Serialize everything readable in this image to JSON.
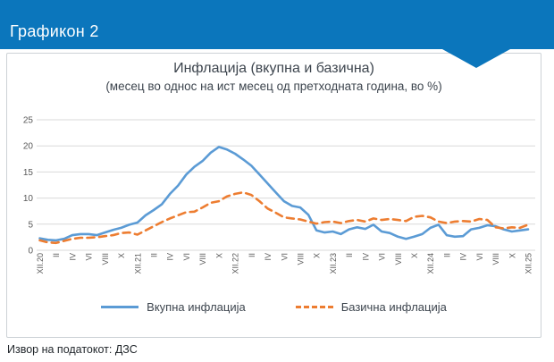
{
  "header": {
    "title": "Графикон 2"
  },
  "footer": {
    "source": "Извор на податокот: ДЗС"
  },
  "colors": {
    "header_blue": "#0b76bc",
    "total_line": "#5b9bd5",
    "core_line": "#ed7d31",
    "grid": "#d9d9d9",
    "axis_text": "#595959",
    "title_text": "#3d454e"
  },
  "chart_data": {
    "type": "line",
    "title": "Инфлација (вкупна и базична)",
    "subtitle": "(месец во однос на ист месец од претходната година, во %)",
    "xlabel": "",
    "ylabel": "",
    "ylim": [
      0,
      25
    ],
    "yticks": [
      0,
      5,
      10,
      15,
      20,
      25
    ],
    "grid": true,
    "legend_position": "bottom",
    "x_frequency": "monthly, every second month labeled, XII.2020 - XII.2025",
    "x_tick_labels": [
      "XII.20",
      "II",
      "IV",
      "VI",
      "VIII",
      "X",
      "XII.21",
      "II",
      "IV",
      "VI",
      "VIII",
      "X",
      "XII.22",
      "II",
      "IV",
      "VI",
      "VIII",
      "X",
      "XII.23",
      "II",
      "IV",
      "VI",
      "VIII",
      "X",
      "XII.24",
      "II",
      "IV",
      "VI",
      "VIII",
      "X",
      "XII.25"
    ],
    "series": [
      {
        "name": "Вкупна инфлација",
        "color": "#5b9bd5",
        "style": "solid",
        "values": [
          2.3,
          2.0,
          1.9,
          2.2,
          2.9,
          3.1,
          3.1,
          2.9,
          3.4,
          3.9,
          4.3,
          4.9,
          5.3,
          6.7,
          7.7,
          8.8,
          10.8,
          12.4,
          14.5,
          16.0,
          17.1,
          18.7,
          19.8,
          19.3,
          18.5,
          17.4,
          16.2,
          14.5,
          12.8,
          11.1,
          9.4,
          8.5,
          8.2,
          6.8,
          3.8,
          3.4,
          3.6,
          3.1,
          4.0,
          4.4,
          4.1,
          4.9,
          3.6,
          3.3,
          2.6,
          2.2,
          2.6,
          3.1,
          4.3,
          4.9,
          2.9,
          2.6,
          2.7,
          4.0,
          4.3,
          4.8,
          4.6,
          4.0,
          3.6,
          3.8,
          4.0
        ]
      },
      {
        "name": "Базична инфлација",
        "color": "#ed7d31",
        "style": "dashed",
        "values": [
          1.9,
          1.5,
          1.4,
          1.8,
          2.2,
          2.4,
          2.4,
          2.5,
          2.7,
          2.9,
          3.3,
          3.4,
          3.0,
          3.8,
          4.6,
          5.4,
          6.1,
          6.7,
          7.3,
          7.4,
          8.2,
          9.1,
          9.4,
          10.3,
          10.8,
          11.1,
          10.6,
          9.4,
          8.0,
          7.2,
          6.3,
          6.1,
          5.9,
          5.5,
          5.1,
          5.4,
          5.5,
          5.2,
          5.6,
          5.8,
          5.5,
          6.1,
          5.8,
          6.0,
          5.8,
          5.6,
          6.4,
          6.6,
          6.3,
          5.5,
          5.2,
          5.5,
          5.6,
          5.5,
          6.0,
          5.8,
          4.4,
          4.2,
          4.4,
          4.3,
          4.9
        ]
      }
    ]
  }
}
